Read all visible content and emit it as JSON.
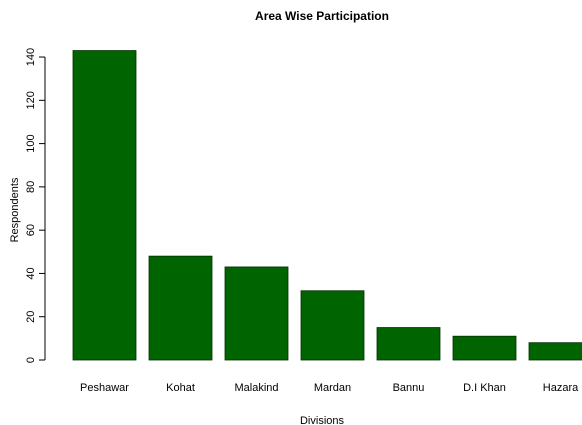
{
  "chart_data": {
    "type": "bar",
    "title": "Area Wise Participation",
    "x_label": "Divisions",
    "y_label": "Respondents",
    "categories": [
      "Peshawar",
      "Kohat",
      "Malakind",
      "Mardan",
      "Bannu",
      "D.I Khan",
      "Hazara"
    ],
    "values": [
      143,
      48,
      43,
      32,
      15,
      11,
      8
    ],
    "color": "#006400",
    "ylim": [
      0,
      150
    ],
    "yticks": [
      0,
      20,
      40,
      60,
      80,
      100,
      120,
      140
    ],
    "grid": false
  }
}
